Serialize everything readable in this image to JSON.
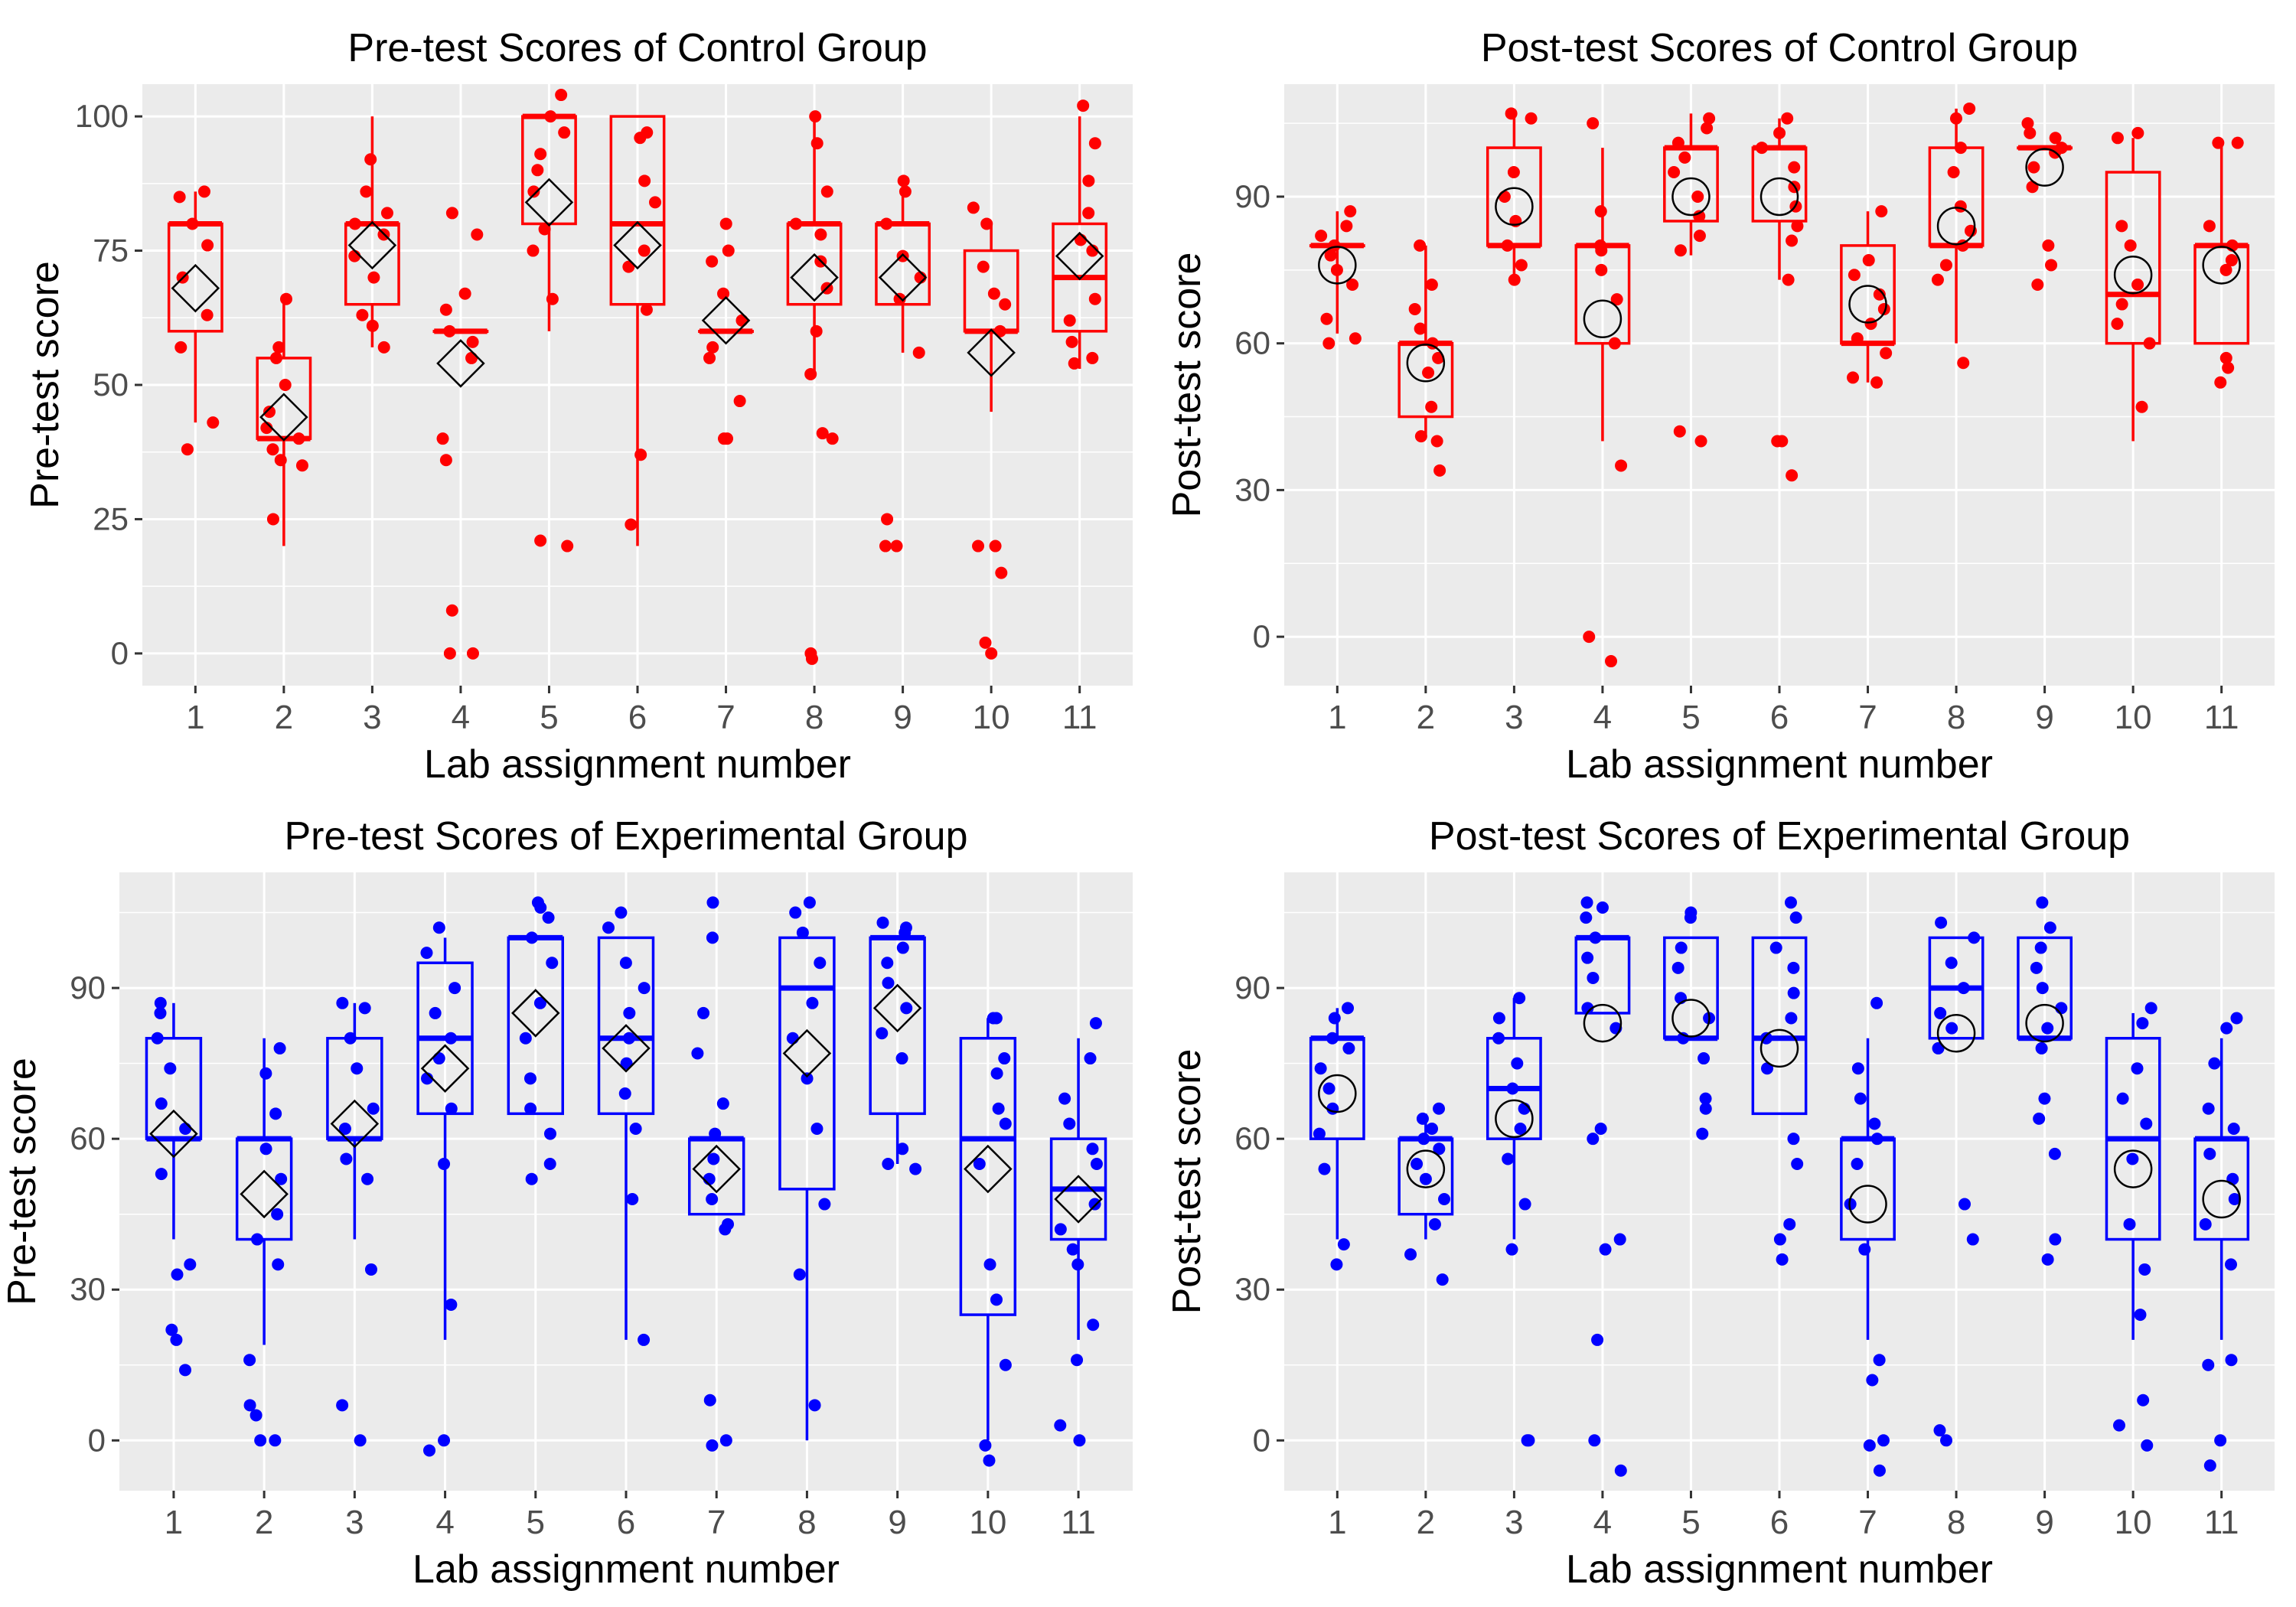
{
  "colors": {
    "control": "#ff0000",
    "experimental": "#0000ff",
    "panel_background": "#ebebeb",
    "grid": "#ffffff",
    "mean_marker": "#000000"
  },
  "chart_data": [
    {
      "type": "boxplot",
      "title": "Pre-test Scores of Control Group",
      "xlabel": "Lab assignment number",
      "ylabel": "Pre-test score",
      "categories": [
        "1",
        "2",
        "3",
        "4",
        "5",
        "6",
        "7",
        "8",
        "9",
        "10",
        "11"
      ],
      "ylim": [
        -6,
        106
      ],
      "yticks": [
        0,
        25,
        50,
        75,
        100
      ],
      "grid": true,
      "color": "control",
      "mean_marker": "diamond",
      "boxes": [
        {
          "lower": 43,
          "q1": 60,
          "median": 80,
          "q3": 80,
          "upper": 86,
          "mean": 68
        },
        {
          "lower": 20,
          "q1": 40,
          "median": 40,
          "q3": 55,
          "upper": 66,
          "mean": 44
        },
        {
          "lower": 57,
          "q1": 65,
          "median": 80,
          "q3": 80,
          "upper": 100,
          "mean": 76
        },
        {
          "lower": 60,
          "q1": 60,
          "median": 60,
          "q3": 60,
          "upper": 60,
          "mean": 54
        },
        {
          "lower": 60,
          "q1": 80,
          "median": 100,
          "q3": 100,
          "upper": 100,
          "mean": 84
        },
        {
          "lower": 20,
          "q1": 65,
          "median": 80,
          "q3": 100,
          "upper": 100,
          "mean": 76
        },
        {
          "lower": 60,
          "q1": 60,
          "median": 60,
          "q3": 60,
          "upper": 60,
          "mean": 62
        },
        {
          "lower": 52,
          "q1": 65,
          "median": 80,
          "q3": 80,
          "upper": 100,
          "mean": 70
        },
        {
          "lower": 56,
          "q1": 65,
          "median": 80,
          "q3": 80,
          "upper": 86,
          "mean": 70
        },
        {
          "lower": 45,
          "q1": 60,
          "median": 60,
          "q3": 75,
          "upper": 80,
          "mean": 56
        },
        {
          "lower": 53,
          "q1": 60,
          "median": 70,
          "q3": 80,
          "upper": 100,
          "mean": 74
        }
      ],
      "points": [
        [
          86,
          85,
          80,
          76,
          70,
          63,
          57,
          43,
          38
        ],
        [
          66,
          57,
          55,
          50,
          45,
          42,
          40,
          38,
          36,
          35,
          25
        ],
        [
          92,
          86,
          82,
          80,
          78,
          74,
          70,
          63,
          61,
          57
        ],
        [
          82,
          78,
          67,
          64,
          60,
          58,
          55,
          40,
          36,
          8,
          0,
          0
        ],
        [
          104,
          100,
          97,
          93,
          90,
          86,
          79,
          75,
          66,
          21,
          20
        ],
        [
          97,
          96,
          88,
          84,
          75,
          72,
          64,
          37,
          24
        ],
        [
          80,
          75,
          73,
          67,
          62,
          57,
          55,
          47,
          40,
          40
        ],
        [
          100,
          95,
          86,
          80,
          78,
          73,
          68,
          60,
          52,
          41,
          40,
          0,
          -1
        ],
        [
          88,
          86,
          80,
          74,
          70,
          66,
          56,
          25,
          20,
          20
        ],
        [
          83,
          80,
          72,
          67,
          65,
          60,
          20,
          20,
          15,
          2,
          0
        ],
        [
          102,
          95,
          88,
          82,
          77,
          75,
          66,
          62,
          58,
          55,
          54
        ]
      ]
    },
    {
      "type": "boxplot",
      "title": "Post-test Scores of Control Group",
      "xlabel": "Lab assignment number",
      "ylabel": "Post-test score",
      "categories": [
        "1",
        "2",
        "3",
        "4",
        "5",
        "6",
        "7",
        "8",
        "9",
        "10",
        "11"
      ],
      "ylim": [
        -10,
        113
      ],
      "yticks": [
        0,
        30,
        60,
        90
      ],
      "grid": true,
      "color": "control",
      "mean_marker": "circle",
      "boxes": [
        {
          "lower": 62,
          "q1": 80,
          "median": 80,
          "q3": 80,
          "upper": 87,
          "mean": 76
        },
        {
          "lower": 41,
          "q1": 45,
          "median": 60,
          "q3": 60,
          "upper": 80,
          "mean": 56
        },
        {
          "lower": 73,
          "q1": 80,
          "median": 80,
          "q3": 100,
          "upper": 107,
          "mean": 88
        },
        {
          "lower": 40,
          "q1": 60,
          "median": 80,
          "q3": 80,
          "upper": 100,
          "mean": 65
        },
        {
          "lower": 78,
          "q1": 85,
          "median": 100,
          "q3": 100,
          "upper": 107,
          "mean": 90
        },
        {
          "lower": 73,
          "q1": 85,
          "median": 100,
          "q3": 100,
          "upper": 106,
          "mean": 90
        },
        {
          "lower": 52,
          "q1": 60,
          "median": 60,
          "q3": 80,
          "upper": 87,
          "mean": 68
        },
        {
          "lower": 60,
          "q1": 80,
          "median": 80,
          "q3": 100,
          "upper": 108,
          "mean": 84
        },
        {
          "lower": 100,
          "q1": 100,
          "median": 100,
          "q3": 100,
          "upper": 100,
          "mean": 96
        },
        {
          "lower": 40,
          "q1": 60,
          "median": 70,
          "q3": 95,
          "upper": 102,
          "mean": 74
        },
        {
          "lower": 60,
          "q1": 60,
          "median": 80,
          "q3": 80,
          "upper": 101,
          "mean": 76
        }
      ],
      "points": [
        [
          87,
          84,
          82,
          80,
          78,
          75,
          72,
          65,
          61,
          60
        ],
        [
          80,
          72,
          67,
          63,
          60,
          57,
          54,
          47,
          41,
          40,
          34
        ],
        [
          107,
          106,
          95,
          90,
          85,
          80,
          76,
          73
        ],
        [
          105,
          87,
          80,
          79,
          75,
          69,
          60,
          35,
          0,
          -5
        ],
        [
          106,
          104,
          101,
          98,
          95,
          90,
          86,
          82,
          79,
          42,
          40
        ],
        [
          106,
          103,
          100,
          96,
          92,
          88,
          84,
          81,
          73,
          40,
          40,
          33
        ],
        [
          87,
          77,
          74,
          70,
          67,
          64,
          61,
          58,
          53,
          52
        ],
        [
          108,
          106,
          100,
          95,
          88,
          83,
          80,
          76,
          73,
          56
        ],
        [
          105,
          103,
          102,
          100,
          99,
          96,
          92,
          80,
          76,
          72
        ],
        [
          103,
          102,
          84,
          80,
          72,
          68,
          64,
          60,
          47
        ],
        [
          101,
          101,
          84,
          80,
          77,
          75,
          57,
          55,
          52
        ]
      ]
    },
    {
      "type": "boxplot",
      "title": "Pre-test Scores of Experimental Group",
      "xlabel": "Lab assignment number",
      "ylabel": "Pre-test score",
      "categories": [
        "1",
        "2",
        "3",
        "4",
        "5",
        "6",
        "7",
        "8",
        "9",
        "10",
        "11"
      ],
      "ylim": [
        -10,
        113
      ],
      "yticks": [
        0,
        30,
        60,
        90
      ],
      "grid": true,
      "color": "experimental",
      "mean_marker": "diamond",
      "boxes": [
        {
          "lower": 40,
          "q1": 60,
          "median": 60,
          "q3": 80,
          "upper": 87,
          "mean": 61
        },
        {
          "lower": 19,
          "q1": 40,
          "median": 60,
          "q3": 60,
          "upper": 80,
          "mean": 49
        },
        {
          "lower": 40,
          "q1": 60,
          "median": 60,
          "q3": 80,
          "upper": 87,
          "mean": 63
        },
        {
          "lower": 20,
          "q1": 65,
          "median": 80,
          "q3": 95,
          "upper": 100,
          "mean": 74
        },
        {
          "lower": 65,
          "q1": 65,
          "median": 100,
          "q3": 100,
          "upper": 100,
          "mean": 85
        },
        {
          "lower": 20,
          "q1": 65,
          "median": 80,
          "q3": 100,
          "upper": 100,
          "mean": 78
        },
        {
          "lower": 45,
          "q1": 45,
          "median": 60,
          "q3": 60,
          "upper": 60,
          "mean": 54
        },
        {
          "lower": 0,
          "q1": 50,
          "median": 90,
          "q3": 100,
          "upper": 100,
          "mean": 77
        },
        {
          "lower": 55,
          "q1": 65,
          "median": 100,
          "q3": 100,
          "upper": 100,
          "mean": 86
        },
        {
          "lower": 0,
          "q1": 25,
          "median": 60,
          "q3": 80,
          "upper": 84,
          "mean": 54
        },
        {
          "lower": 20,
          "q1": 40,
          "median": 50,
          "q3": 60,
          "upper": 80,
          "mean": 48
        }
      ],
      "points": [
        [
          87,
          85,
          80,
          74,
          67,
          62,
          53,
          35,
          33,
          22,
          20,
          14
        ],
        [
          78,
          73,
          65,
          58,
          52,
          45,
          40,
          35,
          16,
          7,
          5,
          0,
          0
        ],
        [
          87,
          86,
          80,
          74,
          66,
          62,
          56,
          52,
          34,
          7,
          0
        ],
        [
          102,
          97,
          90,
          85,
          80,
          76,
          72,
          66,
          55,
          27,
          0,
          -2
        ],
        [
          107,
          106,
          104,
          100,
          95,
          87,
          80,
          72,
          66,
          61,
          55,
          52
        ],
        [
          105,
          102,
          95,
          90,
          85,
          80,
          75,
          69,
          62,
          48,
          20
        ],
        [
          107,
          100,
          85,
          77,
          67,
          61,
          56,
          52,
          48,
          43,
          42,
          8,
          0,
          -1
        ],
        [
          107,
          105,
          101,
          95,
          87,
          80,
          72,
          62,
          47,
          33,
          7
        ],
        [
          103,
          102,
          101,
          98,
          95,
          91,
          86,
          81,
          76,
          58,
          55,
          54
        ],
        [
          84,
          84,
          76,
          73,
          66,
          63,
          55,
          35,
          28,
          15,
          -1,
          -4
        ],
        [
          83,
          76,
          68,
          63,
          58,
          55,
          47,
          42,
          38,
          35,
          23,
          16,
          3,
          0
        ]
      ]
    },
    {
      "type": "boxplot",
      "title": "Post-test Scores of Experimental Group",
      "xlabel": "Lab assignment number",
      "ylabel": "Post-test score",
      "categories": [
        "1",
        "2",
        "3",
        "4",
        "5",
        "6",
        "7",
        "8",
        "9",
        "10",
        "11"
      ],
      "ylim": [
        -10,
        113
      ],
      "yticks": [
        0,
        30,
        60,
        90
      ],
      "grid": true,
      "color": "experimental",
      "mean_marker": "circle",
      "boxes": [
        {
          "lower": 40,
          "q1": 60,
          "median": 80,
          "q3": 80,
          "upper": 86,
          "mean": 69
        },
        {
          "lower": 40,
          "q1": 45,
          "median": 60,
          "q3": 60,
          "upper": 65,
          "mean": 54
        },
        {
          "lower": 40,
          "q1": 60,
          "median": 70,
          "q3": 80,
          "upper": 88,
          "mean": 64
        },
        {
          "lower": 85,
          "q1": 85,
          "median": 100,
          "q3": 100,
          "upper": 100,
          "mean": 83
        },
        {
          "lower": 80,
          "q1": 80,
          "median": 80,
          "q3": 100,
          "upper": 100,
          "mean": 84
        },
        {
          "lower": 65,
          "q1": 65,
          "median": 80,
          "q3": 100,
          "upper": 100,
          "mean": 78
        },
        {
          "lower": 20,
          "q1": 40,
          "median": 60,
          "q3": 60,
          "upper": 80,
          "mean": 47
        },
        {
          "lower": 80,
          "q1": 80,
          "median": 90,
          "q3": 100,
          "upper": 100,
          "mean": 81
        },
        {
          "lower": 80,
          "q1": 80,
          "median": 80,
          "q3": 100,
          "upper": 100,
          "mean": 83
        },
        {
          "lower": 20,
          "q1": 40,
          "median": 60,
          "q3": 80,
          "upper": 85,
          "mean": 54
        },
        {
          "lower": 20,
          "q1": 40,
          "median": 60,
          "q3": 60,
          "upper": 80,
          "mean": 48
        }
      ],
      "points": [
        [
          86,
          84,
          80,
          78,
          74,
          70,
          66,
          61,
          54,
          39,
          35
        ],
        [
          66,
          64,
          62,
          60,
          58,
          55,
          52,
          48,
          43,
          37,
          32
        ],
        [
          88,
          84,
          80,
          75,
          70,
          66,
          62,
          56,
          47,
          38,
          0,
          0
        ],
        [
          107,
          106,
          104,
          100,
          96,
          92,
          86,
          82,
          62,
          60,
          40,
          38,
          20,
          0,
          -6
        ],
        [
          105,
          104,
          98,
          94,
          88,
          84,
          80,
          76,
          68,
          66,
          61
        ],
        [
          107,
          104,
          98,
          94,
          89,
          84,
          80,
          74,
          60,
          55,
          43,
          40,
          36
        ],
        [
          87,
          74,
          68,
          63,
          60,
          55,
          47,
          38,
          16,
          12,
          0,
          -1,
          -6
        ],
        [
          103,
          100,
          95,
          90,
          85,
          82,
          78,
          47,
          40,
          2,
          0
        ],
        [
          107,
          102,
          98,
          94,
          90,
          86,
          82,
          78,
          68,
          64,
          57,
          40,
          36
        ],
        [
          86,
          83,
          74,
          68,
          63,
          56,
          43,
          34,
          25,
          8,
          3,
          -1
        ],
        [
          84,
          82,
          75,
          66,
          62,
          57,
          52,
          48,
          43,
          35,
          16,
          15,
          0,
          -5
        ]
      ]
    }
  ]
}
